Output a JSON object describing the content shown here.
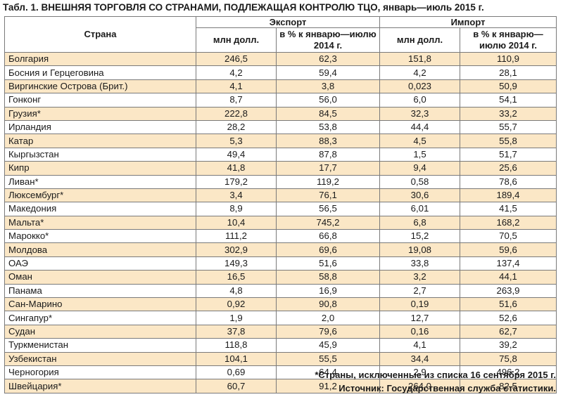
{
  "title": "Табл. 1. ВНЕШНЯЯ ТОРГОВЛЯ СО СТРАНАМИ, ПОДЛЕЖАЩАЯ КОНТРОЛЮ ТЦО, январь—июль 2015 г.",
  "headers": {
    "country": "Страна",
    "export": "Экспорт",
    "import": "Импорт",
    "mln": "млн долл.",
    "pct": "в % к январю—июлю 2014 г."
  },
  "rows": [
    {
      "country": "Болгария",
      "exp_mln": "246,5",
      "exp_pct": "62,3",
      "imp_mln": "151,8",
      "imp_pct": "110,9"
    },
    {
      "country": "Босния и Герцеговина",
      "exp_mln": "4,2",
      "exp_pct": "59,4",
      "imp_mln": "4,2",
      "imp_pct": "28,1"
    },
    {
      "country": "Виргинские Острова (Брит.)",
      "exp_mln": "4,1",
      "exp_pct": "3,8",
      "imp_mln": "0,023",
      "imp_pct": "50,9"
    },
    {
      "country": "Гонконг",
      "exp_mln": "8,7",
      "exp_pct": "56,0",
      "imp_mln": "6,0",
      "imp_pct": "54,1"
    },
    {
      "country": "Грузия*",
      "exp_mln": "222,8",
      "exp_pct": "84,5",
      "imp_mln": "32,3",
      "imp_pct": "33,2"
    },
    {
      "country": "Ирландия",
      "exp_mln": "28,2",
      "exp_pct": "53,8",
      "imp_mln": "44,4",
      "imp_pct": "55,7"
    },
    {
      "country": "Катар",
      "exp_mln": "5,3",
      "exp_pct": "88,3",
      "imp_mln": "4,5",
      "imp_pct": "55,8"
    },
    {
      "country": "Кыргызстан",
      "exp_mln": "49,4",
      "exp_pct": "87,8",
      "imp_mln": "1,5",
      "imp_pct": "51,7"
    },
    {
      "country": "Кипр",
      "exp_mln": "41,8",
      "exp_pct": "17,7",
      "imp_mln": "9,4",
      "imp_pct": "25,6"
    },
    {
      "country": "Ливан*",
      "exp_mln": "179,2",
      "exp_pct": "119,2",
      "imp_mln": "0,58",
      "imp_pct": "78,6"
    },
    {
      "country": "Люксембург*",
      "exp_mln": "3,4",
      "exp_pct": "76,1",
      "imp_mln": "30,6",
      "imp_pct": "189,4"
    },
    {
      "country": "Македония",
      "exp_mln": "8,9",
      "exp_pct": "56,5",
      "imp_mln": "6,01",
      "imp_pct": "41,5"
    },
    {
      "country": "Мальта*",
      "exp_mln": "10,4",
      "exp_pct": "745,2",
      "imp_mln": "6,8",
      "imp_pct": "168,2"
    },
    {
      "country": "Марокко*",
      "exp_mln": "111,2",
      "exp_pct": "66,8",
      "imp_mln": "15,2",
      "imp_pct": "70,5"
    },
    {
      "country": "Молдова",
      "exp_mln": "302,9",
      "exp_pct": "69,6",
      "imp_mln": "19,08",
      "imp_pct": "59,6"
    },
    {
      "country": "ОАЭ",
      "exp_mln": "149,3",
      "exp_pct": "51,6",
      "imp_mln": "33,8",
      "imp_pct": "137,4"
    },
    {
      "country": "Оман",
      "exp_mln": "16,5",
      "exp_pct": "58,8",
      "imp_mln": "3,2",
      "imp_pct": "44,1"
    },
    {
      "country": "Панама",
      "exp_mln": "4,8",
      "exp_pct": "16,9",
      "imp_mln": "2,7",
      "imp_pct": "263,9"
    },
    {
      "country": "Сан-Марино",
      "exp_mln": "0,92",
      "exp_pct": "90,8",
      "imp_mln": "0,19",
      "imp_pct": "51,6"
    },
    {
      "country": "Сингапур*",
      "exp_mln": "1,9",
      "exp_pct": "2,0",
      "imp_mln": "12,7",
      "imp_pct": "52,6"
    },
    {
      "country": "Судан",
      "exp_mln": "37,8",
      "exp_pct": "79,6",
      "imp_mln": "0,16",
      "imp_pct": "62,7"
    },
    {
      "country": "Туркменистан",
      "exp_mln": "118,8",
      "exp_pct": "45,9",
      "imp_mln": "4,1",
      "imp_pct": "39,2"
    },
    {
      "country": "Узбекистан",
      "exp_mln": "104,1",
      "exp_pct": "55,5",
      "imp_mln": "34,4",
      "imp_pct": "75,8"
    },
    {
      "country": "Черногория",
      "exp_mln": "0,69",
      "exp_pct": "64,4",
      "imp_mln": "2,9",
      "imp_pct": "496,2"
    },
    {
      "country": "Швейцария*",
      "exp_mln": "60,7",
      "exp_pct": "91,2",
      "imp_mln": "264,0",
      "imp_pct": "82,5"
    }
  ],
  "footnote": "*Страны, исключенные из списка 16 сентября 2015 г.",
  "source": "Источник: Государственная служба статистики.",
  "colors": {
    "shade": "#fbe7c6",
    "border": "#7a7a7a"
  }
}
